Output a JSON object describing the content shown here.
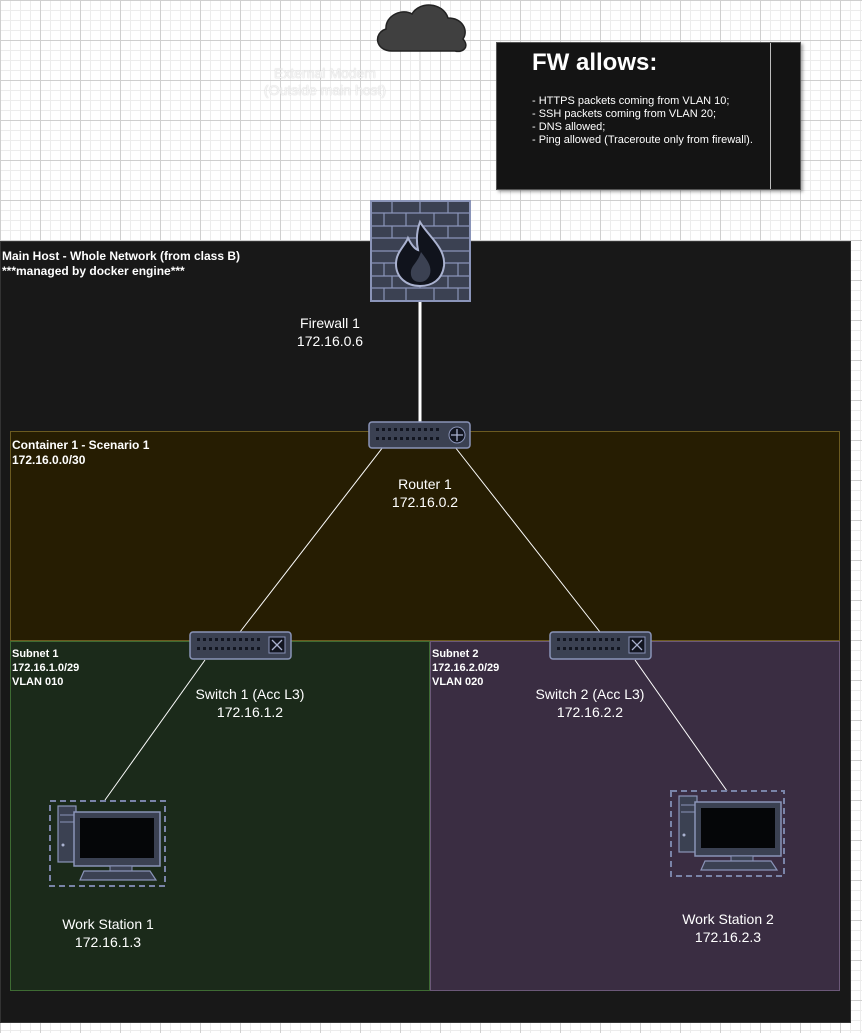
{
  "boxes": {
    "main_host": {
      "title": "Main Host - Whole Network (from class B)",
      "subtitle": "***managed by docker engine***"
    },
    "container1": {
      "title": "Container 1 - Scenario 1",
      "subtitle": "172.16.0.0/30"
    },
    "subnet1": {
      "title": "Subnet 1",
      "network": "172.16.1.0/29",
      "vlan": "VLAN 010"
    },
    "subnet2": {
      "title": "Subnet 2",
      "network": "172.16.2.0/29",
      "vlan": "VLAN 020"
    }
  },
  "nodes": {
    "modem": {
      "name": "External Modem",
      "note": "(Outside main host)",
      "icon": "cloud-icon"
    },
    "firewall": {
      "name": "Firewall 1",
      "ip": "172.16.0.6",
      "icon": "firewall-icon"
    },
    "router": {
      "name": "Router 1",
      "ip": "172.16.0.2",
      "icon": "router-icon"
    },
    "switch1": {
      "name": "Switch 1 (Acc L3)",
      "ip": "172.16.1.2",
      "icon": "switch-icon"
    },
    "switch2": {
      "name": "Switch 2 (Acc L3)",
      "ip": "172.16.2.2",
      "icon": "switch-icon"
    },
    "ws1": {
      "name": "Work Station 1",
      "ip": "172.16.1.3",
      "icon": "workstation-icon"
    },
    "ws2": {
      "name": "Work Station 2",
      "ip": "172.16.2.3",
      "icon": "workstation-icon"
    }
  },
  "fw_note": {
    "title": "FW allows:",
    "rules": [
      "- HTTPS packets coming from VLAN 10;",
      "- SSH packets coming from VLAN 20;",
      "- DNS allowed;",
      "- Ping allowed (Traceroute only from firewall)."
    ]
  },
  "colors": {
    "main_host": "#181818",
    "container": "#261d02",
    "subnet1": "#1b2a1a",
    "subnet2": "#3a2d42",
    "icon": "#3b4152",
    "icon_stroke": "#8a94b8"
  }
}
